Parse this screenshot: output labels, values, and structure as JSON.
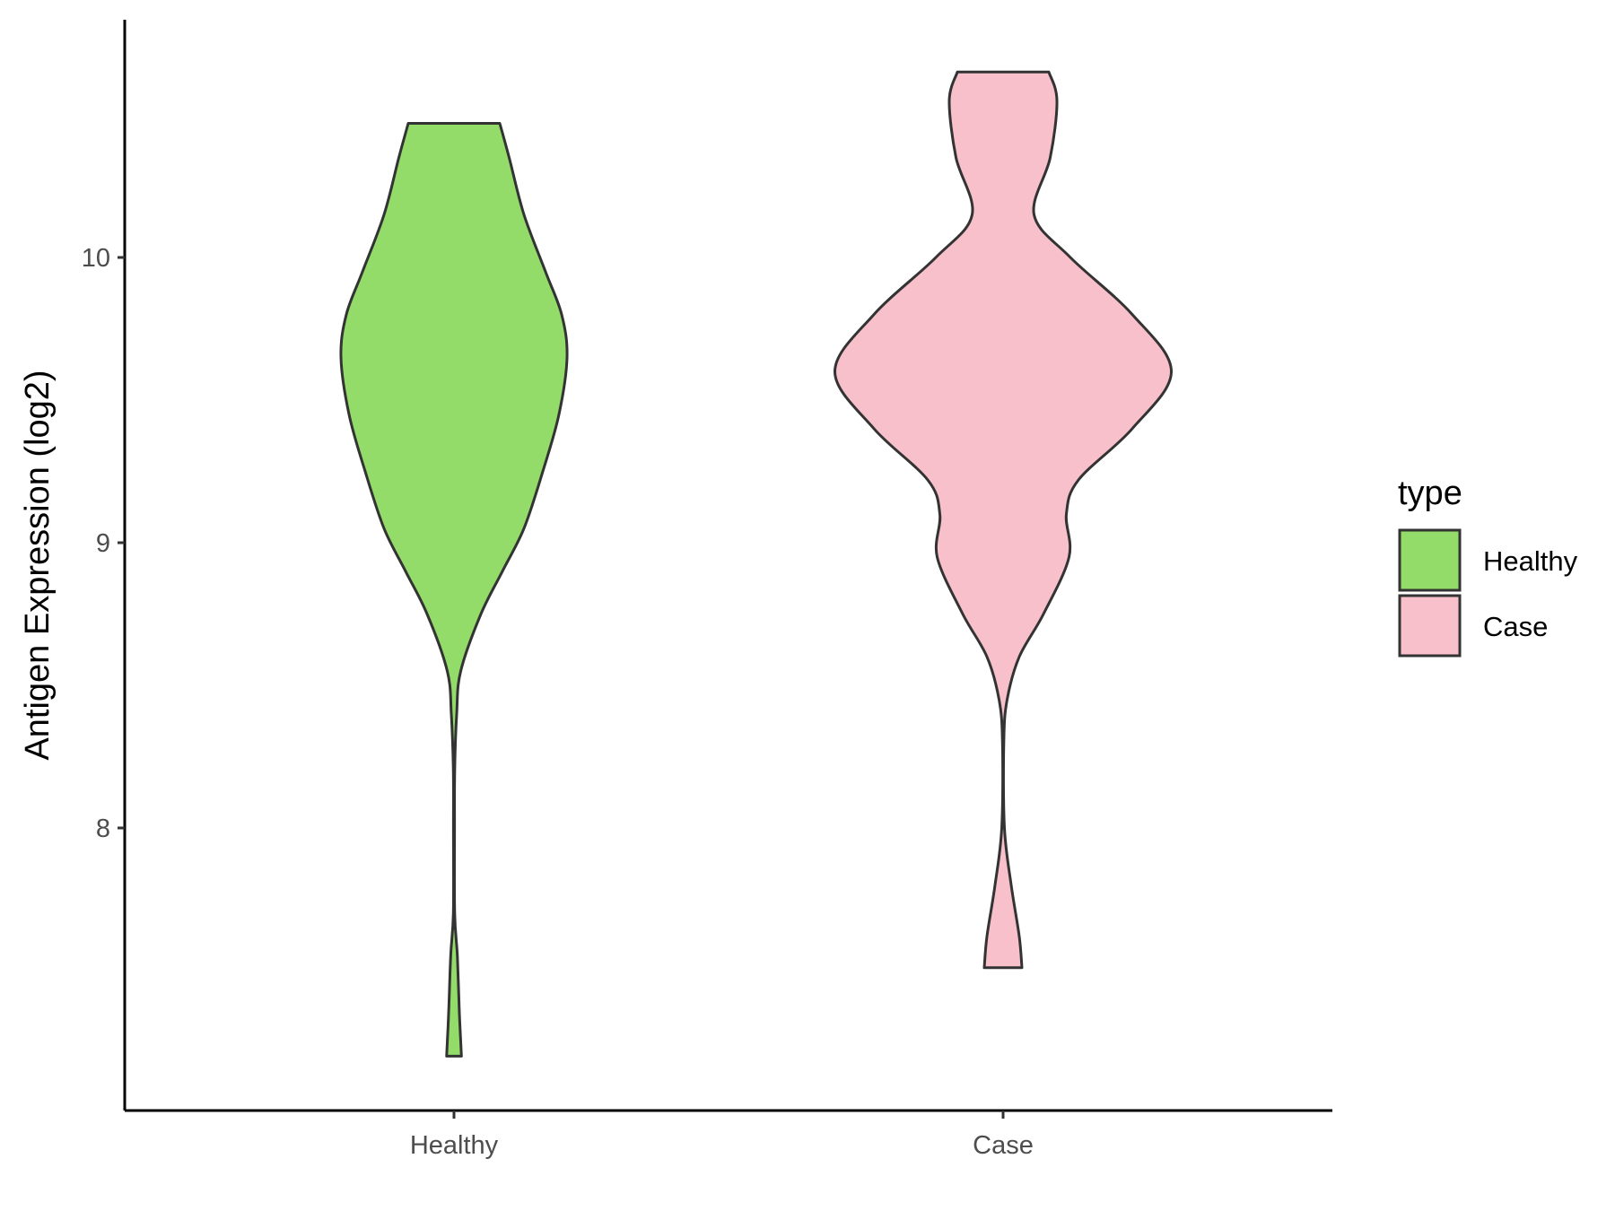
{
  "chart_data": {
    "type": "violin",
    "title": "",
    "xlabel": "",
    "ylabel": "Antigen Expression (log2)",
    "ylim": [
      7.0,
      10.83
    ],
    "yticks": [
      8,
      9,
      10
    ],
    "categories": [
      "Healthy",
      "Case"
    ],
    "grid": false,
    "legend": {
      "title": "type",
      "position": "right",
      "entries": [
        {
          "label": "Healthy",
          "color": "#93dc6a"
        },
        {
          "label": "Case",
          "color": "#f7c0cb"
        }
      ]
    },
    "series": [
      {
        "name": "Healthy",
        "color": "#93dc6a",
        "y_min": 7.2,
        "y_max": 10.47,
        "density_profile": [
          {
            "y": 7.2,
            "half_width": 0.055
          },
          {
            "y": 7.35,
            "half_width": 0.04
          },
          {
            "y": 7.55,
            "half_width": 0.025
          },
          {
            "y": 7.7,
            "half_width": 0.005
          },
          {
            "y": 8.0,
            "half_width": 0.004
          },
          {
            "y": 8.2,
            "half_width": 0.005
          },
          {
            "y": 8.4,
            "half_width": 0.02
          },
          {
            "y": 8.55,
            "half_width": 0.05
          },
          {
            "y": 8.75,
            "half_width": 0.2
          },
          {
            "y": 8.9,
            "half_width": 0.36
          },
          {
            "y": 9.05,
            "half_width": 0.52
          },
          {
            "y": 9.25,
            "half_width": 0.66
          },
          {
            "y": 9.45,
            "half_width": 0.78
          },
          {
            "y": 9.65,
            "half_width": 0.84
          },
          {
            "y": 9.8,
            "half_width": 0.8
          },
          {
            "y": 9.95,
            "half_width": 0.68
          },
          {
            "y": 10.15,
            "half_width": 0.52
          },
          {
            "y": 10.35,
            "half_width": 0.41
          },
          {
            "y": 10.47,
            "half_width": 0.34
          }
        ]
      },
      {
        "name": "Case",
        "color": "#f7c0cb",
        "y_min": 7.51,
        "y_max": 10.65,
        "density_profile": [
          {
            "y": 7.51,
            "half_width": 0.14
          },
          {
            "y": 7.62,
            "half_width": 0.12
          },
          {
            "y": 7.8,
            "half_width": 0.06
          },
          {
            "y": 8.0,
            "half_width": 0.01
          },
          {
            "y": 8.3,
            "half_width": 0.005
          },
          {
            "y": 8.45,
            "half_width": 0.03
          },
          {
            "y": 8.6,
            "half_width": 0.12
          },
          {
            "y": 8.75,
            "half_width": 0.3
          },
          {
            "y": 8.95,
            "half_width": 0.49
          },
          {
            "y": 9.1,
            "half_width": 0.47
          },
          {
            "y": 9.22,
            "half_width": 0.56
          },
          {
            "y": 9.4,
            "half_width": 0.96
          },
          {
            "y": 9.6,
            "half_width": 1.25
          },
          {
            "y": 9.8,
            "half_width": 0.96
          },
          {
            "y": 10.0,
            "half_width": 0.5
          },
          {
            "y": 10.15,
            "half_width": 0.23
          },
          {
            "y": 10.35,
            "half_width": 0.35
          },
          {
            "y": 10.55,
            "half_width": 0.4
          },
          {
            "y": 10.65,
            "half_width": 0.34
          }
        ]
      }
    ]
  }
}
